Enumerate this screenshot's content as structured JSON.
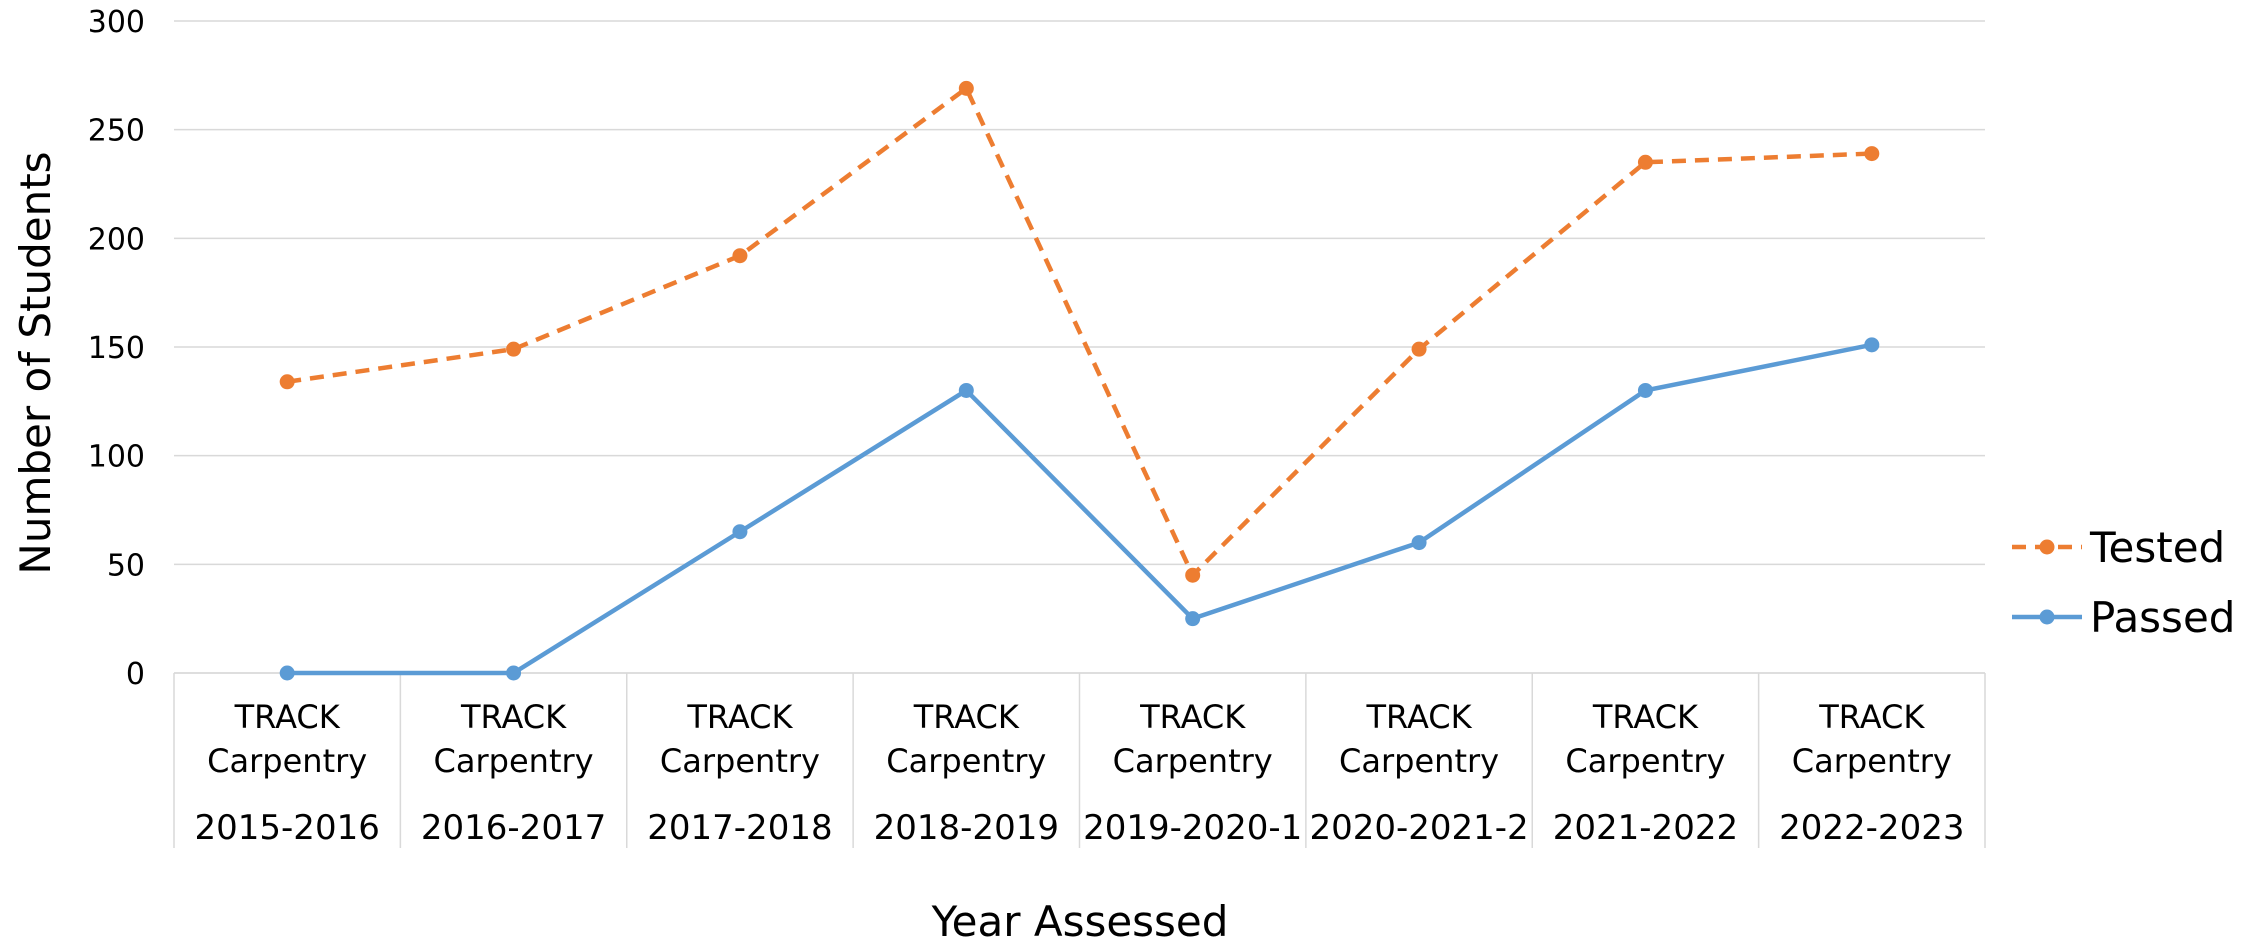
{
  "chart_data": {
    "type": "line",
    "xlabel": "Year Assessed",
    "ylabel": "Number of Students",
    "ylim": [
      0,
      300
    ],
    "yticks": [
      "0",
      "50",
      "100",
      "150",
      "200",
      "250",
      "300"
    ],
    "grid": true,
    "legend_position": "right",
    "categories": [
      {
        "program": [
          "TRACK",
          "Carpentry"
        ],
        "year": "2015-2016"
      },
      {
        "program": [
          "TRACK",
          "Carpentry"
        ],
        "year": "2016-2017"
      },
      {
        "program": [
          "TRACK",
          "Carpentry"
        ],
        "year": "2017-2018"
      },
      {
        "program": [
          "TRACK",
          "Carpentry"
        ],
        "year": "2018-2019"
      },
      {
        "program": [
          "TRACK",
          "Carpentry"
        ],
        "year": "2019-2020-1"
      },
      {
        "program": [
          "TRACK",
          "Carpentry"
        ],
        "year": "2020-2021-2"
      },
      {
        "program": [
          "TRACK",
          "Carpentry"
        ],
        "year": "2021-2022"
      },
      {
        "program": [
          "TRACK",
          "Carpentry"
        ],
        "year": "2022-2023"
      }
    ],
    "series": [
      {
        "name": "Tested",
        "color": "#ED7D31",
        "dashed": true,
        "values": [
          134,
          149,
          192,
          269,
          45,
          149,
          235,
          239
        ]
      },
      {
        "name": "Passed",
        "color": "#5B9BD5",
        "dashed": false,
        "values": [
          0,
          0,
          65,
          130,
          25,
          60,
          130,
          151
        ]
      }
    ]
  }
}
